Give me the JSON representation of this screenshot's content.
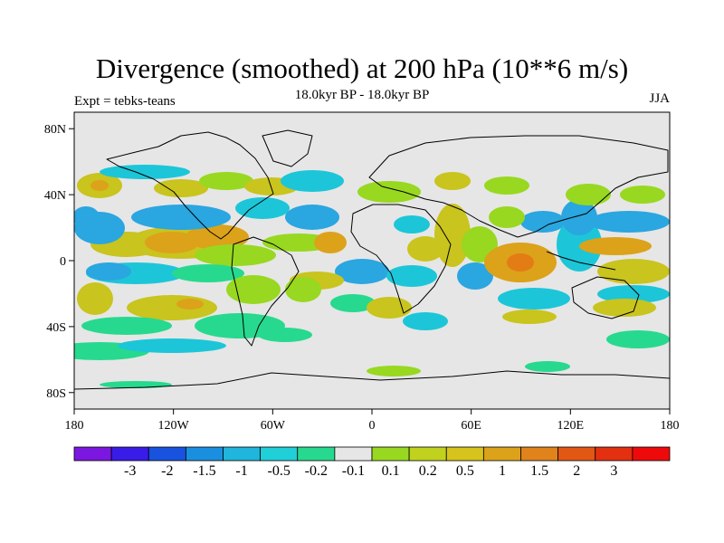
{
  "title": "Divergence (smoothed) at 200 hPa (10**6 m/s)",
  "subtitle": "18.0kyr BP - 18.0kyr BP",
  "experiment": "Expt = tebks-teans",
  "season": "JJA",
  "colors": {
    "background": "#ffffff",
    "ocean_neutral": "#e6e6e6",
    "coast": "#000000",
    "neg_strong": "#2aa6e0",
    "neg_medium": "#1cc6d8",
    "neg_light": "#27d98e",
    "pos_light": "#98d820",
    "pos_medium": "#c9c41e",
    "pos_strong": "#dca21a",
    "pos_peak": "#e37c14"
  },
  "lat_axis": {
    "labels": [
      "80N",
      "40N",
      "0",
      "40S",
      "80S"
    ],
    "values": [
      80,
      40,
      0,
      -40,
      -80
    ]
  },
  "lon_axis": {
    "labels": [
      "180",
      "120W",
      "60W",
      "0",
      "60E",
      "120E",
      "180"
    ],
    "values": [
      -180,
      -120,
      -60,
      0,
      60,
      120,
      180
    ]
  },
  "colorbar": {
    "colors": [
      "#7b17e0",
      "#3a1ce8",
      "#1852df",
      "#1a8fdf",
      "#1fb5dc",
      "#20cfd8",
      "#27d98e",
      "#e6e6e6",
      "#98d820",
      "#c0d21d",
      "#d6c31c",
      "#dca21a",
      "#e0831a",
      "#e35714",
      "#e33010",
      "#ee0a0a"
    ],
    "labels": [
      "-3",
      "-2",
      "-1.5",
      "-1",
      "-0.5",
      "-0.2",
      "-0.1",
      "0.1",
      "0.2",
      "0.5",
      "1",
      "1.5",
      "2",
      "3"
    ]
  }
}
